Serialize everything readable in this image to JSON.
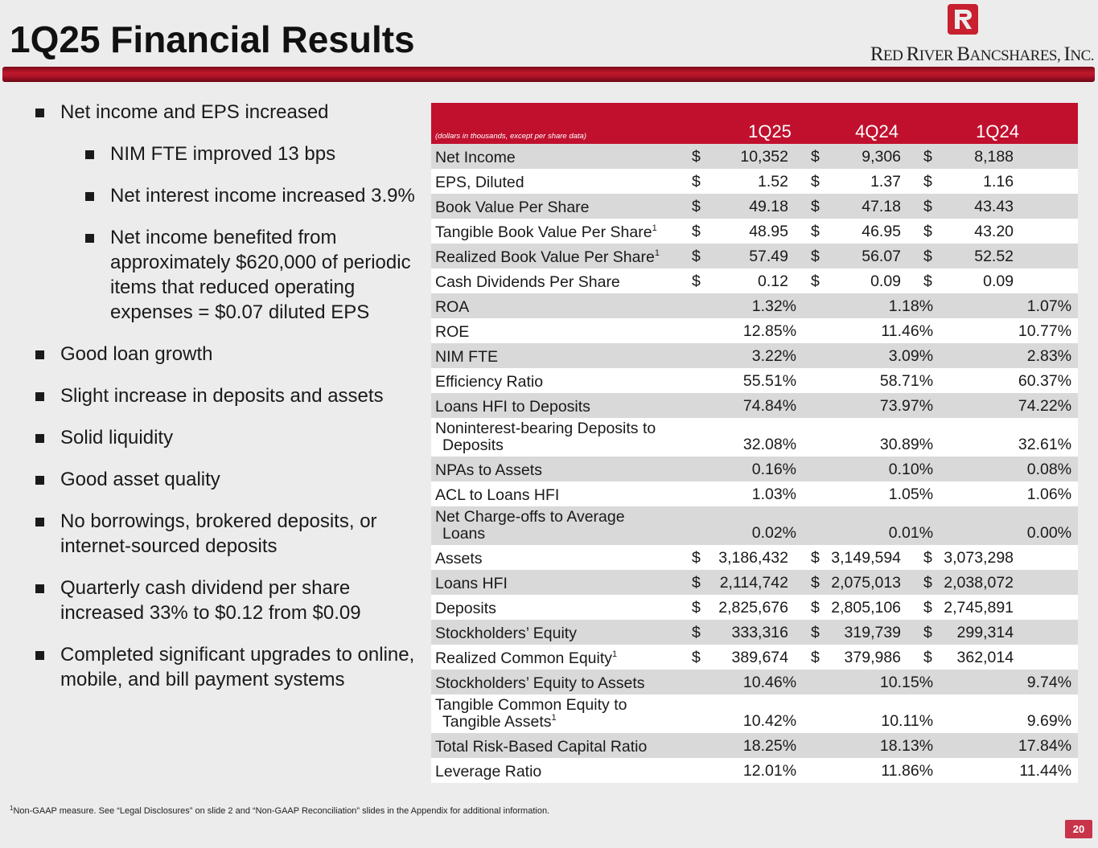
{
  "header": {
    "title": "1Q25 Financial Results",
    "logo_text_R1": "R",
    "logo_text_ed": "ED ",
    "logo_text_R2": "R",
    "logo_text_iver": "IVER ",
    "logo_text_B": "B",
    "logo_text_ancshares": "ANCSHARES",
    "logo_text_comma": ", ",
    "logo_text_I": "I",
    "logo_text_nc": "NC."
  },
  "bullets": [
    {
      "text": "Net income and EPS increased"
    },
    {
      "text": "NIM FTE improved 13 bps"
    },
    {
      "text": "Net interest income increased 3.9%"
    },
    {
      "text": "Net income benefited from approximately $620,000 of periodic items that reduced operating expenses = $0.07 diluted EPS"
    },
    {
      "text": "Good loan growth"
    },
    {
      "text": "Slight increase in deposits and assets"
    },
    {
      "text": "Solid liquidity"
    },
    {
      "text": "Good asset quality"
    },
    {
      "text": "No borrowings, brokered deposits, or internet-sourced deposits"
    },
    {
      "text": "Quarterly cash dividend per share increased 33% to $0.12 from $0.09"
    },
    {
      "text": "Completed significant upgrades to online, mobile, and bill payment systems"
    }
  ],
  "table": {
    "note": "(dollars in thousands, except per share data)",
    "columns": [
      "1Q25",
      "4Q24",
      "1Q24"
    ],
    "currency_symbol": "$",
    "footnote_marker": "1",
    "rows": [
      {
        "label": "Net Income",
        "values": [
          "10,352",
          "9,306",
          "8,188"
        ]
      },
      {
        "label": "EPS, Diluted",
        "values": [
          "1.52",
          "1.37",
          "1.16"
        ]
      },
      {
        "label": "Book Value Per Share",
        "values": [
          "49.18",
          "47.18",
          "43.43"
        ]
      },
      {
        "label": "Tangible Book Value Per Share",
        "values": [
          "48.95",
          "46.95",
          "43.20"
        ]
      },
      {
        "label": "Realized Book Value Per Share",
        "values": [
          "57.49",
          "56.07",
          "52.52"
        ]
      },
      {
        "label": "Cash Dividends Per Share",
        "values": [
          "0.12",
          "0.09",
          "0.09"
        ]
      },
      {
        "label": "ROA",
        "values": [
          "1.32%",
          "1.18%",
          "1.07%"
        ]
      },
      {
        "label": "ROE",
        "values": [
          "12.85%",
          "11.46%",
          "10.77%"
        ]
      },
      {
        "label": "NIM FTE",
        "values": [
          "3.22%",
          "3.09%",
          "2.83%"
        ]
      },
      {
        "label": "Efficiency Ratio",
        "values": [
          "55.51%",
          "58.71%",
          "60.37%"
        ]
      },
      {
        "label": "Loans HFI to Deposits",
        "values": [
          "74.84%",
          "73.97%",
          "74.22%"
        ]
      },
      {
        "label": "Noninterest-bearing Deposits to",
        "label2": "Deposits",
        "values": [
          "32.08%",
          "30.89%",
          "32.61%"
        ]
      },
      {
        "label": "NPAs to Assets",
        "values": [
          "0.16%",
          "0.10%",
          "0.08%"
        ]
      },
      {
        "label": "ACL to Loans HFI",
        "values": [
          "1.03%",
          "1.05%",
          "1.06%"
        ]
      },
      {
        "label": "Net Charge-offs to Average",
        "label2": "Loans",
        "values": [
          "0.02%",
          "0.01%",
          "0.00%"
        ]
      },
      {
        "label": "Assets",
        "values": [
          "3,186,432",
          "3,149,594",
          "3,073,298"
        ]
      },
      {
        "label": "Loans HFI",
        "values": [
          "2,114,742",
          "2,075,013",
          "2,038,072"
        ]
      },
      {
        "label": "Deposits",
        "values": [
          "2,825,676",
          "2,805,106",
          "2,745,891"
        ]
      },
      {
        "label": "Stockholders’ Equity",
        "values": [
          "333,316",
          "319,739",
          "299,314"
        ]
      },
      {
        "label": "Realized Common Equity",
        "values": [
          "389,674",
          "379,986",
          "362,014"
        ]
      },
      {
        "label": "Stockholders’ Equity to Assets",
        "values": [
          "10.46%",
          "10.15%",
          "9.74%"
        ]
      },
      {
        "label": "Tangible Common Equity to",
        "label2": "Tangible Assets",
        "values": [
          "10.42%",
          "10.11%",
          "9.69%"
        ]
      },
      {
        "label": "Total Risk-Based Capital Ratio",
        "values": [
          "18.25%",
          "18.13%",
          "17.84%"
        ]
      },
      {
        "label": "Leverage Ratio",
        "values": [
          "12.01%",
          "11.86%",
          "11.44%"
        ]
      }
    ]
  },
  "footer": {
    "footnote_marker": "1",
    "footnote": "Non-GAAP measure. See “Legal Disclosures” on slide 2 and “Non-GAAP Reconciliation” slides in the Appendix for additional information.",
    "page_number": "20"
  },
  "colors": {
    "brand_red": "#c0102e",
    "row_gray": "#d9d9d9",
    "background": "#ececec"
  }
}
